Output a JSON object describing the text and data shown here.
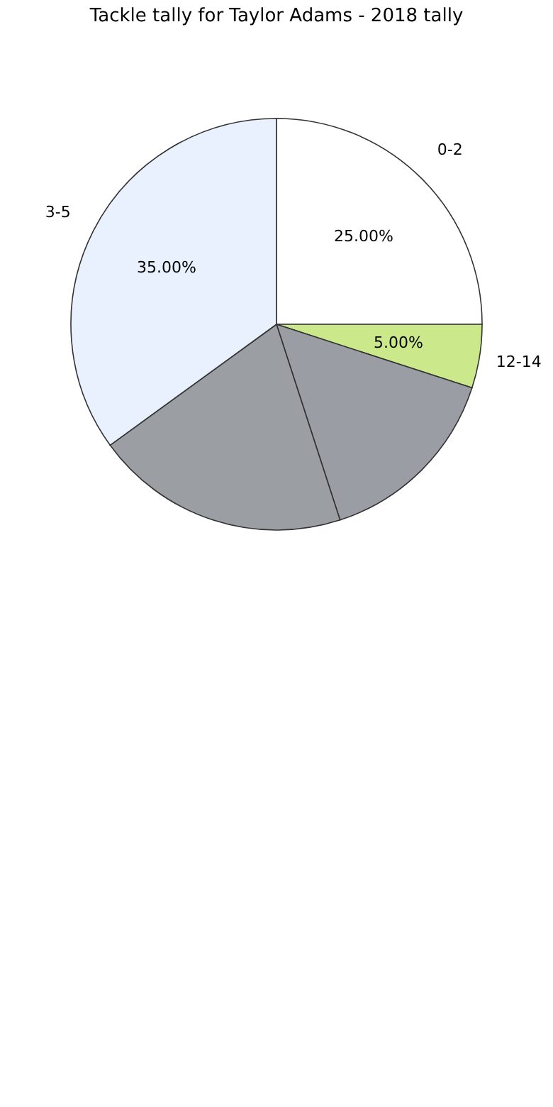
{
  "chart_data": {
    "type": "pie",
    "title": "Tackle tally for Taylor Adams - 2018 tally",
    "categories": [
      "0-2",
      "12-14",
      null,
      null,
      "3-5"
    ],
    "values": [
      25,
      5,
      15,
      20,
      35
    ],
    "colors": [
      "#ffffff",
      "#cbe98a",
      "#9a9da3",
      "#9b9ea2",
      "#eaf1fe"
    ],
    "value_labels": [
      "25.00%",
      "5.00%",
      null,
      null,
      "35.00%"
    ]
  }
}
